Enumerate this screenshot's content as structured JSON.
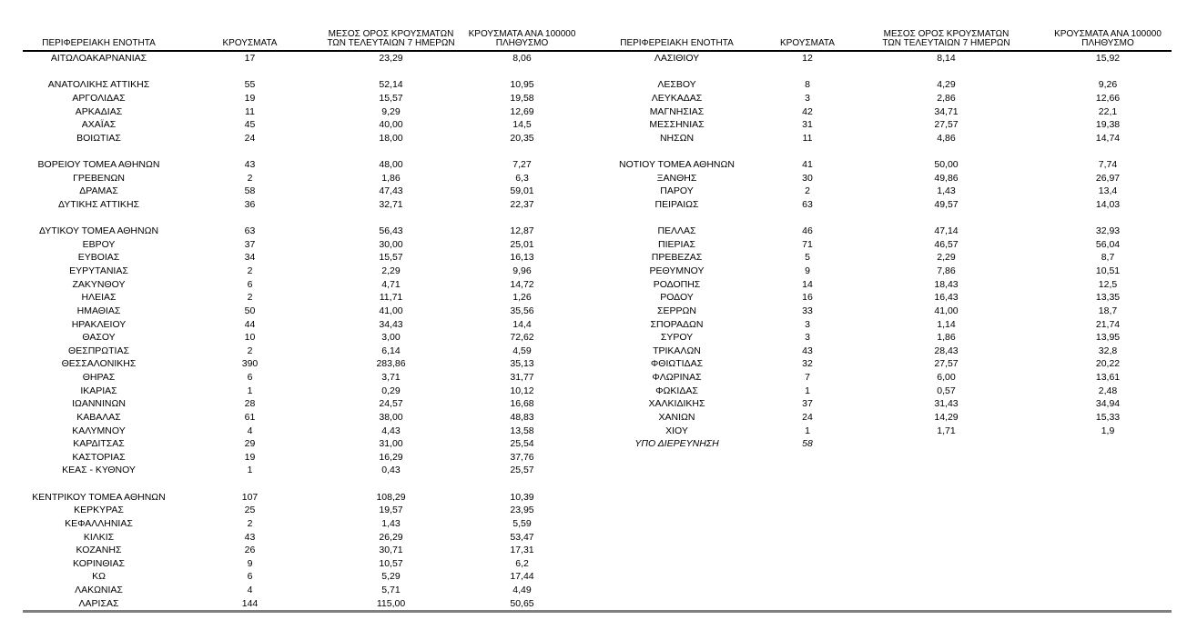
{
  "page": {
    "background": "#ffffff",
    "text_color": "#000000",
    "header_rule_color": "#000000",
    "bottom_rule_color": "#7f7f7f"
  },
  "table": {
    "column_headers": {
      "region": "ΠΕΡΙΦΕΡΕΙΑΚΗ ΕΝΟΤΗΤΑ",
      "cases": "ΚΡΟΥΣΜΑΤΑ",
      "avg7": "ΜΕΣΟΣ ΟΡΟΣ ΚΡΟΥΣΜΑΤΩΝ\nΤΩΝ ΤΕΛΕΥΤΑΙΩΝ 7 ΗΜΕΡΩΝ",
      "per100k": "ΚΡΟΥΣΜΑΤΑ ΑΝΑ 100000\nΠΛΗΘΥΣΜΟ"
    },
    "rows": [
      {
        "left": {
          "region": "ΑΙΤΩΛΟΑΚΑΡΝΑΝΙΑΣ",
          "cases": "17",
          "avg7": "23,29",
          "per100k": "8,06"
        },
        "right": {
          "region": "ΛΑΣΙΘΙΟΥ",
          "cases": "12",
          "avg7": "8,14",
          "per100k": "15,92"
        }
      },
      {
        "left": null,
        "right": null
      },
      {
        "left": {
          "region": "ΑΝΑΤΟΛΙΚΗΣ ΑΤΤΙΚΗΣ",
          "cases": "55",
          "avg7": "52,14",
          "per100k": "10,95"
        },
        "right": {
          "region": "ΛΕΣΒΟΥ",
          "cases": "8",
          "avg7": "4,29",
          "per100k": "9,26"
        }
      },
      {
        "left": {
          "region": "ΑΡΓΟΛΙΔΑΣ",
          "cases": "19",
          "avg7": "15,57",
          "per100k": "19,58"
        },
        "right": {
          "region": "ΛΕΥΚΑΔΑΣ",
          "cases": "3",
          "avg7": "2,86",
          "per100k": "12,66"
        }
      },
      {
        "left": {
          "region": "ΑΡΚΑΔΙΑΣ",
          "cases": "11",
          "avg7": "9,29",
          "per100k": "12,69"
        },
        "right": {
          "region": "ΜΑΓΝΗΣΙΑΣ",
          "cases": "42",
          "avg7": "34,71",
          "per100k": "22,1"
        }
      },
      {
        "left": {
          "region": "ΑΧΑΪΑΣ",
          "cases": "45",
          "avg7": "40,00",
          "per100k": "14,5"
        },
        "right": {
          "region": "ΜΕΣΣΗΝΙΑΣ",
          "cases": "31",
          "avg7": "27,57",
          "per100k": "19,38"
        }
      },
      {
        "left": {
          "region": "ΒΟΙΩΤΙΑΣ",
          "cases": "24",
          "avg7": "18,00",
          "per100k": "20,35"
        },
        "right": {
          "region": "ΝΗΣΩΝ",
          "cases": "11",
          "avg7": "4,86",
          "per100k": "14,74"
        }
      },
      {
        "left": null,
        "right": null
      },
      {
        "left": {
          "region": "ΒΟΡΕΙΟΥ ΤΟΜΕΑ ΑΘΗΝΩΝ",
          "cases": "43",
          "avg7": "48,00",
          "per100k": "7,27"
        },
        "right": {
          "region": "ΝΟΤΙΟΥ ΤΟΜΕΑ ΑΘΗΝΩΝ",
          "cases": "41",
          "avg7": "50,00",
          "per100k": "7,74"
        }
      },
      {
        "left": {
          "region": "ΓΡΕΒΕΝΩΝ",
          "cases": "2",
          "avg7": "1,86",
          "per100k": "6,3"
        },
        "right": {
          "region": "ΞΑΝΘΗΣ",
          "cases": "30",
          "avg7": "49,86",
          "per100k": "26,97"
        }
      },
      {
        "left": {
          "region": "ΔΡΑΜΑΣ",
          "cases": "58",
          "avg7": "47,43",
          "per100k": "59,01"
        },
        "right": {
          "region": "ΠΑΡΟΥ",
          "cases": "2",
          "avg7": "1,43",
          "per100k": "13,4"
        }
      },
      {
        "left": {
          "region": "ΔΥΤΙΚΗΣ ΑΤΤΙΚΗΣ",
          "cases": "36",
          "avg7": "32,71",
          "per100k": "22,37"
        },
        "right": {
          "region": "ΠΕΙΡΑΙΩΣ",
          "cases": "63",
          "avg7": "49,57",
          "per100k": "14,03"
        }
      },
      {
        "left": null,
        "right": null
      },
      {
        "left": {
          "region": "ΔΥΤΙΚΟΥ ΤΟΜΕΑ ΑΘΗΝΩΝ",
          "cases": "63",
          "avg7": "56,43",
          "per100k": "12,87"
        },
        "right": {
          "region": "ΠΕΛΛΑΣ",
          "cases": "46",
          "avg7": "47,14",
          "per100k": "32,93"
        }
      },
      {
        "left": {
          "region": "ΕΒΡΟΥ",
          "cases": "37",
          "avg7": "30,00",
          "per100k": "25,01"
        },
        "right": {
          "region": "ΠΙΕΡΙΑΣ",
          "cases": "71",
          "avg7": "46,57",
          "per100k": "56,04"
        }
      },
      {
        "left": {
          "region": "ΕΥΒΟΙΑΣ",
          "cases": "34",
          "avg7": "15,57",
          "per100k": "16,13"
        },
        "right": {
          "region": "ΠΡΕΒΕΖΑΣ",
          "cases": "5",
          "avg7": "2,29",
          "per100k": "8,7"
        }
      },
      {
        "left": {
          "region": "ΕΥΡΥΤΑΝΙΑΣ",
          "cases": "2",
          "avg7": "2,29",
          "per100k": "9,96"
        },
        "right": {
          "region": "ΡΕΘΥΜΝΟΥ",
          "cases": "9",
          "avg7": "7,86",
          "per100k": "10,51"
        }
      },
      {
        "left": {
          "region": "ΖΑΚΥΝΘΟΥ",
          "cases": "6",
          "avg7": "4,71",
          "per100k": "14,72"
        },
        "right": {
          "region": "ΡΟΔΟΠΗΣ",
          "cases": "14",
          "avg7": "18,43",
          "per100k": "12,5"
        }
      },
      {
        "left": {
          "region": "ΗΛΕΙΑΣ",
          "cases": "2",
          "avg7": "11,71",
          "per100k": "1,26"
        },
        "right": {
          "region": "ΡΟΔΟΥ",
          "cases": "16",
          "avg7": "16,43",
          "per100k": "13,35"
        }
      },
      {
        "left": {
          "region": "ΗΜΑΘΙΑΣ",
          "cases": "50",
          "avg7": "41,00",
          "per100k": "35,56"
        },
        "right": {
          "region": "ΣΕΡΡΩΝ",
          "cases": "33",
          "avg7": "41,00",
          "per100k": "18,7"
        }
      },
      {
        "left": {
          "region": "ΗΡΑΚΛΕΙΟΥ",
          "cases": "44",
          "avg7": "34,43",
          "per100k": "14,4"
        },
        "right": {
          "region": "ΣΠΟΡΑΔΩΝ",
          "cases": "3",
          "avg7": "1,14",
          "per100k": "21,74"
        }
      },
      {
        "left": {
          "region": "ΘΑΣΟΥ",
          "cases": "10",
          "avg7": "3,00",
          "per100k": "72,62"
        },
        "right": {
          "region": "ΣΥΡΟΥ",
          "cases": "3",
          "avg7": "1,86",
          "per100k": "13,95"
        }
      },
      {
        "left": {
          "region": "ΘΕΣΠΡΩΤΙΑΣ",
          "cases": "2",
          "avg7": "6,14",
          "per100k": "4,59"
        },
        "right": {
          "region": "ΤΡΙΚΑΛΩΝ",
          "cases": "43",
          "avg7": "28,43",
          "per100k": "32,8"
        }
      },
      {
        "left": {
          "region": "ΘΕΣΣΑΛΟΝΙΚΗΣ",
          "cases": "390",
          "avg7": "283,86",
          "per100k": "35,13"
        },
        "right": {
          "region": "ΦΘΙΩΤΙΔΑΣ",
          "cases": "32",
          "avg7": "27,57",
          "per100k": "20,22"
        }
      },
      {
        "left": {
          "region": "ΘΗΡΑΣ",
          "cases": "6",
          "avg7": "3,71",
          "per100k": "31,77"
        },
        "right": {
          "region": "ΦΛΩΡΙΝΑΣ",
          "cases": "7",
          "avg7": "6,00",
          "per100k": "13,61"
        }
      },
      {
        "left": {
          "region": "ΙΚΑΡΙΑΣ",
          "cases": "1",
          "avg7": "0,29",
          "per100k": "10,12"
        },
        "right": {
          "region": "ΦΩΚΙΔΑΣ",
          "cases": "1",
          "avg7": "0,57",
          "per100k": "2,48"
        }
      },
      {
        "left": {
          "region": "ΙΩΑΝΝΙΝΩΝ",
          "cases": "28",
          "avg7": "24,57",
          "per100k": "16,68"
        },
        "right": {
          "region": "ΧΑΛΚΙΔΙΚΗΣ",
          "cases": "37",
          "avg7": "31,43",
          "per100k": "34,94"
        }
      },
      {
        "left": {
          "region": "ΚΑΒΑΛΑΣ",
          "cases": "61",
          "avg7": "38,00",
          "per100k": "48,83"
        },
        "right": {
          "region": "ΧΑΝΙΩΝ",
          "cases": "24",
          "avg7": "14,29",
          "per100k": "15,33"
        }
      },
      {
        "left": {
          "region": "ΚΑΛΥΜΝΟΥ",
          "cases": "4",
          "avg7": "4,43",
          "per100k": "13,58"
        },
        "right": {
          "region": "ΧΙΟΥ",
          "cases": "1",
          "avg7": "1,71",
          "per100k": "1,9"
        }
      },
      {
        "left": {
          "region": "ΚΑΡΔΙΤΣΑΣ",
          "cases": "29",
          "avg7": "31,00",
          "per100k": "25,54"
        },
        "right": {
          "region": "ΥΠΟ ΔΙΕΡΕΥΝΗΣΗ",
          "cases": "58",
          "avg7": "",
          "per100k": "",
          "italic": true
        }
      },
      {
        "left": {
          "region": "ΚΑΣΤΟΡΙΑΣ",
          "cases": "19",
          "avg7": "16,29",
          "per100k": "37,76"
        },
        "right": null
      },
      {
        "left": {
          "region": "ΚΕΑΣ - ΚΥΘΝΟΥ",
          "cases": "1",
          "avg7": "0,43",
          "per100k": "25,57"
        },
        "right": null
      },
      {
        "left": null,
        "right": null
      },
      {
        "left": {
          "region": "ΚΕΝΤΡΙΚΟΥ ΤΟΜΕΑ ΑΘΗΝΩΝ",
          "cases": "107",
          "avg7": "108,29",
          "per100k": "10,39"
        },
        "right": null
      },
      {
        "left": {
          "region": "ΚΕΡΚΥΡΑΣ",
          "cases": "25",
          "avg7": "19,57",
          "per100k": "23,95"
        },
        "right": null
      },
      {
        "left": {
          "region": "ΚΕΦΑΛΛΗΝΙΑΣ",
          "cases": "2",
          "avg7": "1,43",
          "per100k": "5,59"
        },
        "right": null
      },
      {
        "left": {
          "region": "ΚΙΛΚΙΣ",
          "cases": "43",
          "avg7": "26,29",
          "per100k": "53,47"
        },
        "right": null
      },
      {
        "left": {
          "region": "ΚΟΖΑΝΗΣ",
          "cases": "26",
          "avg7": "30,71",
          "per100k": "17,31"
        },
        "right": null
      },
      {
        "left": {
          "region": "ΚΟΡΙΝΘΙΑΣ",
          "cases": "9",
          "avg7": "10,57",
          "per100k": "6,2"
        },
        "right": null
      },
      {
        "left": {
          "region": "ΚΩ",
          "cases": "6",
          "avg7": "5,29",
          "per100k": "17,44"
        },
        "right": null
      },
      {
        "left": {
          "region": "ΛΑΚΩΝΙΑΣ",
          "cases": "4",
          "avg7": "5,71",
          "per100k": "4,49"
        },
        "right": null
      },
      {
        "left": {
          "region": "ΛΑΡΙΣΑΣ",
          "cases": "144",
          "avg7": "115,00",
          "per100k": "50,65"
        },
        "right": null
      }
    ]
  }
}
